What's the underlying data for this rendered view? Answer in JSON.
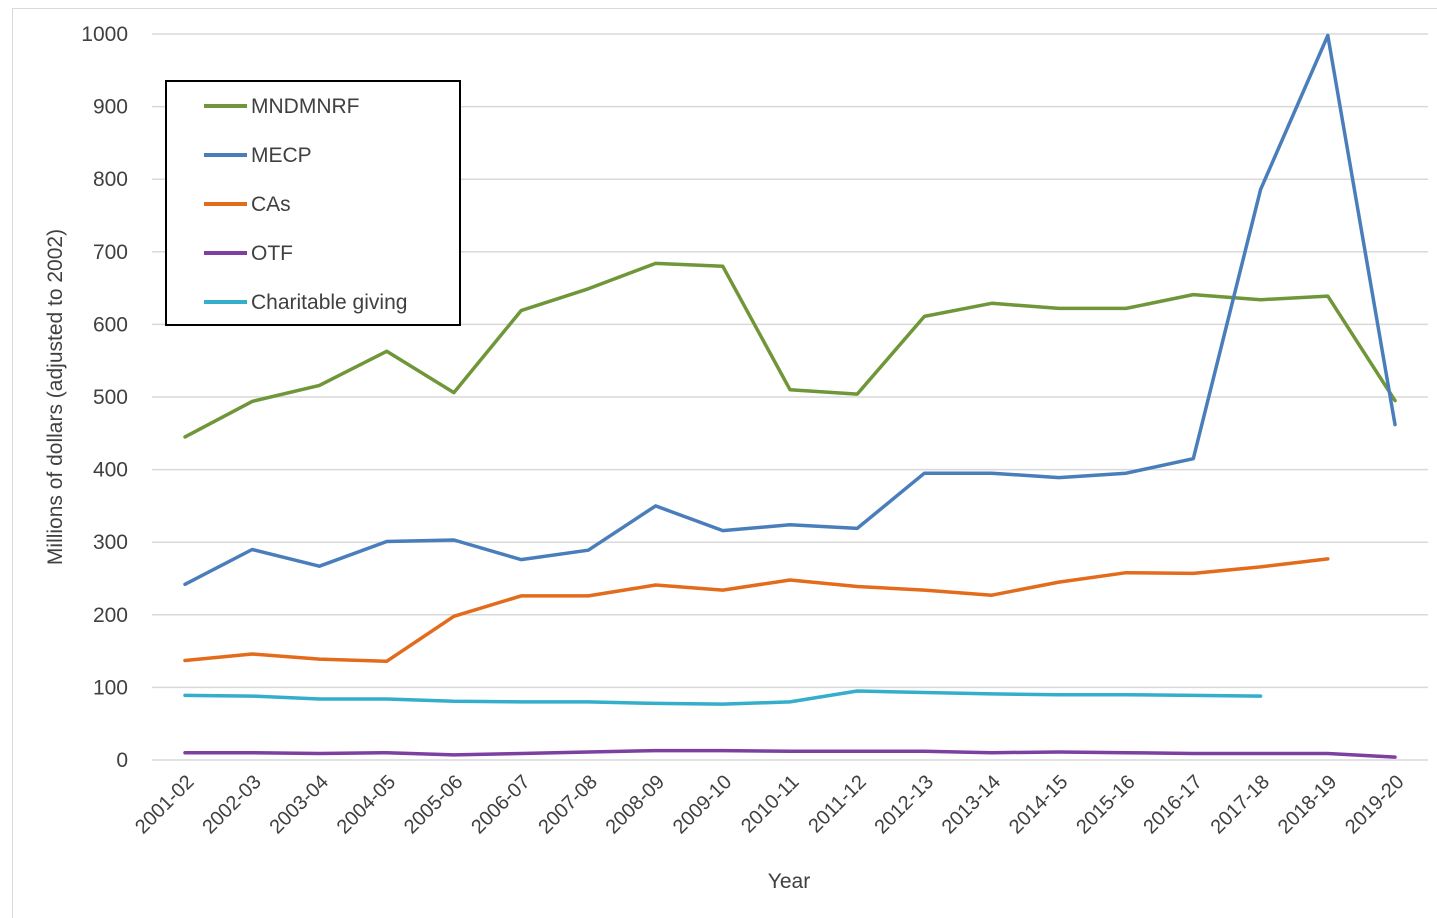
{
  "chart_data": {
    "type": "line",
    "title": "",
    "xlabel": "Year",
    "ylabel": "Millions of dollars (adjusted to 2002)",
    "ylim": [
      0,
      1000
    ],
    "yticks": [
      0,
      100,
      200,
      300,
      400,
      500,
      600,
      700,
      800,
      900,
      1000
    ],
    "grid": "horizontal",
    "legend_position": "top-left",
    "categories": [
      "2001-02",
      "2002-03",
      "2003-04",
      "2004-05",
      "2005-06",
      "2006-07",
      "2007-08",
      "2008-09",
      "2009-10",
      "2010-11",
      "2011-12",
      "2012-13",
      "2013-14",
      "2014-15",
      "2015-16",
      "2016-17",
      "2017-18",
      "2018-19",
      "2019-20"
    ],
    "series": [
      {
        "name": "MNDMNRF",
        "color": "#70963a",
        "values": [
          445,
          494,
          516,
          563,
          506,
          619,
          649,
          684,
          680,
          510,
          504,
          611,
          629,
          622,
          622,
          641,
          634,
          639,
          495
        ]
      },
      {
        "name": "MECP",
        "color": "#4a7ebb",
        "values": [
          242,
          290,
          267,
          301,
          303,
          276,
          289,
          350,
          316,
          324,
          319,
          395,
          395,
          389,
          395,
          415,
          786,
          998,
          462
        ]
      },
      {
        "name": "CAs",
        "color": "#e36c1c",
        "values": [
          137,
          146,
          139,
          136,
          198,
          226,
          226,
          241,
          234,
          248,
          239,
          234,
          227,
          245,
          258,
          257,
          266,
          277,
          null
        ]
      },
      {
        "name": "OTF",
        "color": "#7d3fa0",
        "values": [
          10,
          10,
          9,
          10,
          7,
          9,
          11,
          13,
          13,
          12,
          12,
          12,
          10,
          11,
          10,
          9,
          9,
          9,
          4
        ]
      },
      {
        "name": "Charitable giving",
        "color": "#35aecb",
        "values": [
          89,
          88,
          84,
          84,
          81,
          80,
          80,
          78,
          77,
          80,
          95,
          93,
          91,
          90,
          90,
          89,
          88,
          null,
          null
        ]
      }
    ]
  }
}
